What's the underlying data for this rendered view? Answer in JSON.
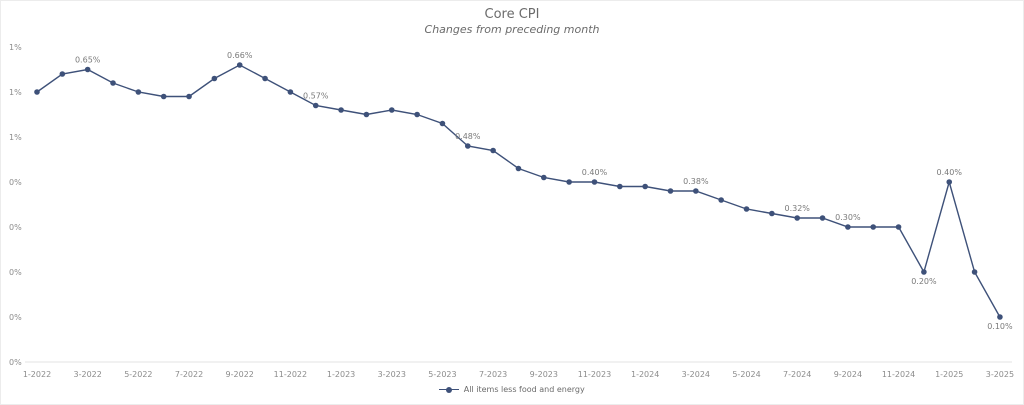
{
  "chart_data": {
    "type": "line",
    "title": "Core CPI",
    "subtitle": "Changes from preceding month",
    "xlabel": "",
    "ylabel": "",
    "ylim": [
      0,
      0.7
    ],
    "y_ticks": [
      {
        "value": 0.0,
        "label": "0%"
      },
      {
        "value": 0.1,
        "label": "0%"
      },
      {
        "value": 0.2,
        "label": "0%"
      },
      {
        "value": 0.3,
        "label": "0%"
      },
      {
        "value": 0.4,
        "label": "0%"
      },
      {
        "value": 0.5,
        "label": "1%"
      },
      {
        "value": 0.6,
        "label": "1%"
      },
      {
        "value": 0.7,
        "label": "1%"
      }
    ],
    "grid": false,
    "legend_position": "bottom",
    "x": [
      "1-2022",
      "2-2022",
      "3-2022",
      "4-2022",
      "5-2022",
      "6-2022",
      "7-2022",
      "8-2022",
      "9-2022",
      "10-2022",
      "11-2022",
      "12-2022",
      "1-2023",
      "2-2023",
      "3-2023",
      "4-2023",
      "5-2023",
      "6-2023",
      "7-2023",
      "8-2023",
      "9-2023",
      "10-2023",
      "11-2023",
      "12-2023",
      "1-2024",
      "2-2024",
      "3-2024",
      "4-2024",
      "5-2024",
      "6-2024",
      "7-2024",
      "8-2024",
      "9-2024",
      "10-2024",
      "11-2024",
      "12-2024",
      "1-2025",
      "2-2025",
      "3-2025"
    ],
    "x_tick_labels": [
      {
        "index": 0,
        "label": "1-2022"
      },
      {
        "index": 2,
        "label": "3-2022"
      },
      {
        "index": 4,
        "label": "5-2022"
      },
      {
        "index": 6,
        "label": "7-2022"
      },
      {
        "index": 8,
        "label": "9-2022"
      },
      {
        "index": 10,
        "label": "11-2022"
      },
      {
        "index": 12,
        "label": "1-2023"
      },
      {
        "index": 14,
        "label": "3-2023"
      },
      {
        "index": 16,
        "label": "5-2023"
      },
      {
        "index": 18,
        "label": "7-2023"
      },
      {
        "index": 20,
        "label": "9-2023"
      },
      {
        "index": 22,
        "label": "11-2023"
      },
      {
        "index": 24,
        "label": "1-2024"
      },
      {
        "index": 26,
        "label": "3-2024"
      },
      {
        "index": 28,
        "label": "5-2024"
      },
      {
        "index": 30,
        "label": "7-2024"
      },
      {
        "index": 32,
        "label": "9-2024"
      },
      {
        "index": 34,
        "label": "11-2024"
      },
      {
        "index": 36,
        "label": "1-2025"
      },
      {
        "index": 38,
        "label": "3-2025"
      }
    ],
    "series": [
      {
        "name": "All items less food and energy",
        "color": "#3e5179",
        "values": [
          0.6,
          0.64,
          0.65,
          0.62,
          0.6,
          0.59,
          0.59,
          0.63,
          0.66,
          0.63,
          0.6,
          0.57,
          0.56,
          0.55,
          0.56,
          0.55,
          0.53,
          0.48,
          0.47,
          0.43,
          0.41,
          0.4,
          0.4,
          0.39,
          0.39,
          0.38,
          0.38,
          0.36,
          0.34,
          0.33,
          0.32,
          0.32,
          0.3,
          0.3,
          0.3,
          0.2,
          0.4,
          0.2,
          0.1
        ]
      }
    ],
    "annotations": [
      {
        "index": 2,
        "label": "0.65%",
        "position": "above"
      },
      {
        "index": 8,
        "label": "0.66%",
        "position": "above"
      },
      {
        "index": 11,
        "label": "0.57%",
        "position": "above"
      },
      {
        "index": 17,
        "label": "0.48%",
        "position": "above"
      },
      {
        "index": 22,
        "label": "0.40%",
        "position": "above"
      },
      {
        "index": 26,
        "label": "0.38%",
        "position": "above"
      },
      {
        "index": 30,
        "label": "0.32%",
        "position": "above"
      },
      {
        "index": 32,
        "label": "0.30%",
        "position": "above"
      },
      {
        "index": 35,
        "label": "0.20%",
        "position": "below"
      },
      {
        "index": 36,
        "label": "0.40%",
        "position": "above"
      },
      {
        "index": 38,
        "label": "0.10%",
        "position": "below"
      }
    ]
  }
}
